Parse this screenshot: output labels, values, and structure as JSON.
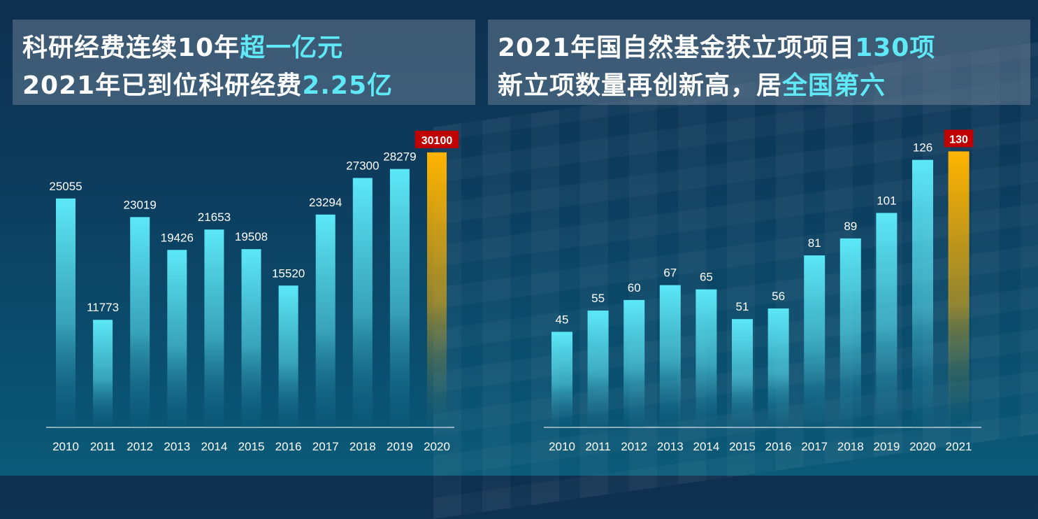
{
  "colors": {
    "bar_top": "#5ce8f8",
    "bar_bottom": "#0c5f80",
    "highlight_top": "#ffb400",
    "highlight_bottom": "#0c5f80",
    "highlight_label_bg": "#c00000",
    "title_highlight": "#5fe8f6"
  },
  "panels": {
    "left": {
      "line1": {
        "text": "科研经费连续10年",
        "hl": "超一亿元"
      },
      "line2": {
        "text": "2021年已到位科研经费",
        "hl": "2.25亿"
      }
    },
    "right": {
      "line1": {
        "text": "2021年国自然基金获立项项目",
        "hl": "130项"
      },
      "line2": {
        "text": "新立项数量再创新高，居",
        "hl": "全国第六"
      }
    }
  },
  "chart_data": [
    {
      "type": "bar",
      "categories": [
        "2010",
        "2011",
        "2012",
        "2013",
        "2014",
        "2015",
        "2016",
        "2017",
        "2018",
        "2019",
        "2020"
      ],
      "values": [
        25055,
        11773,
        23019,
        19426,
        21653,
        19508,
        15520,
        23294,
        27300,
        28279,
        30100
      ],
      "highlight_index": 10,
      "ylim": [
        0,
        33000
      ],
      "grid": false
    },
    {
      "type": "bar",
      "categories": [
        "2010",
        "2011",
        "2012",
        "2013",
        "2014",
        "2015",
        "2016",
        "2017",
        "2018",
        "2019",
        "2020",
        "2021"
      ],
      "values": [
        45,
        55,
        60,
        67,
        65,
        51,
        56,
        81,
        89,
        101,
        126,
        130
      ],
      "highlight_index": 11,
      "ylim": [
        0,
        142
      ],
      "grid": false
    }
  ]
}
